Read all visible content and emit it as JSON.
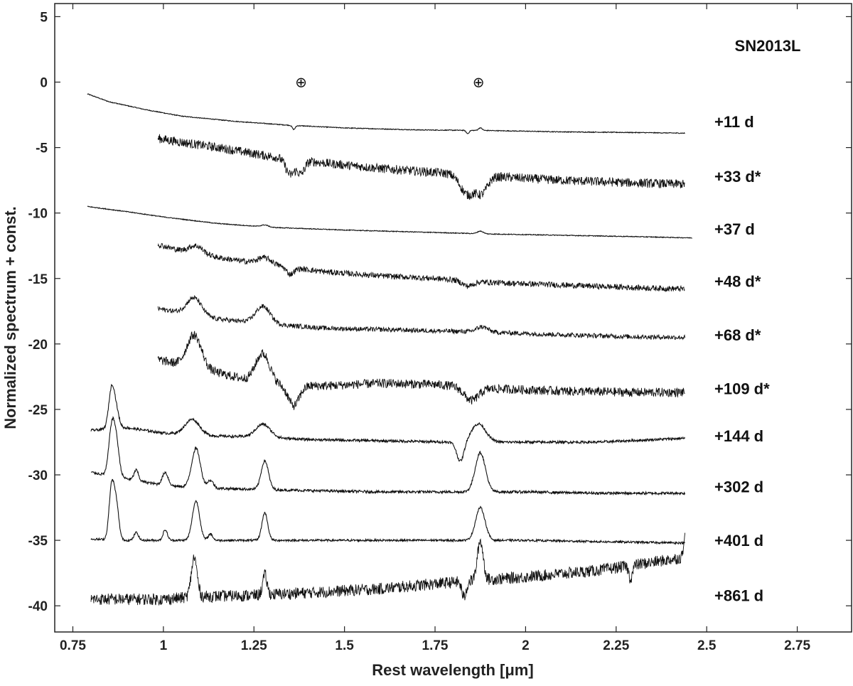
{
  "chart_data": {
    "type": "line",
    "title": "SN2013L",
    "xlabel": "Rest wavelength [μm]",
    "ylabel": "Normalized spectrum + const.",
    "xlim": [
      0.7,
      2.9
    ],
    "ylim": [
      -42,
      6
    ],
    "xticks": [
      0.75,
      1,
      1.25,
      1.5,
      1.75,
      2,
      2.25,
      2.5,
      2.75
    ],
    "xtick_labels": [
      "0.75",
      "1",
      "1.25",
      "1.5",
      "1.75",
      "2",
      "2.25",
      "2.5",
      "2.75"
    ],
    "yticks": [
      5,
      0,
      -5,
      -10,
      -15,
      -20,
      -25,
      -30,
      -35,
      -40
    ],
    "ytick_labels": [
      "5",
      "0",
      "-5",
      "-10",
      "-15",
      "-20",
      "-25",
      "-30",
      "-35",
      "-40"
    ],
    "grid": false,
    "telluric_markers": [
      {
        "x": 1.38,
        "y": 0,
        "symbol": "⊕"
      },
      {
        "x": 1.87,
        "y": 0,
        "symbol": "⊕"
      }
    ],
    "series": [
      {
        "label": "+11 d",
        "label_y": -3.0,
        "noise": 0.03,
        "points": [
          [
            0.79,
            -0.9
          ],
          [
            0.85,
            -1.5
          ],
          [
            0.95,
            -2.1
          ],
          [
            1.05,
            -2.6
          ],
          [
            1.2,
            -3.0
          ],
          [
            1.35,
            -3.3
          ],
          [
            1.5,
            -3.5
          ],
          [
            1.7,
            -3.65
          ],
          [
            1.9,
            -3.7
          ],
          [
            2.1,
            -3.8
          ],
          [
            2.3,
            -3.85
          ],
          [
            2.44,
            -3.9
          ]
        ],
        "features": [
          {
            "x": 1.36,
            "amp": -0.3,
            "w": 0.004
          },
          {
            "x": 1.84,
            "amp": -0.25,
            "w": 0.004
          },
          {
            "x": 1.875,
            "amp": 0.2,
            "w": 0.005
          }
        ]
      },
      {
        "label": "+33 d*",
        "label_y": -7.2,
        "noise": 0.35,
        "points": [
          [
            0.985,
            -4.3
          ],
          [
            1.05,
            -4.6
          ],
          [
            1.15,
            -5.0
          ],
          [
            1.3,
            -5.7
          ],
          [
            1.45,
            -6.2
          ],
          [
            1.6,
            -6.6
          ],
          [
            1.75,
            -6.9
          ],
          [
            1.9,
            -7.2
          ],
          [
            2.1,
            -7.5
          ],
          [
            2.3,
            -7.7
          ],
          [
            2.44,
            -7.8
          ]
        ],
        "features": [
          {
            "x": 1.35,
            "amp": -1.2,
            "w": 0.012
          },
          {
            "x": 1.38,
            "amp": -1.0,
            "w": 0.01
          },
          {
            "x": 1.84,
            "amp": -1.5,
            "w": 0.02
          },
          {
            "x": 1.88,
            "amp": -1.2,
            "w": 0.015
          }
        ]
      },
      {
        "label": "+37 d",
        "label_y": -11.2,
        "noise": 0.03,
        "points": [
          [
            0.79,
            -9.5
          ],
          [
            0.9,
            -9.9
          ],
          [
            1.0,
            -10.3
          ],
          [
            1.15,
            -10.8
          ],
          [
            1.3,
            -11.1
          ],
          [
            1.5,
            -11.3
          ],
          [
            1.7,
            -11.45
          ],
          [
            1.9,
            -11.6
          ],
          [
            2.1,
            -11.7
          ],
          [
            2.3,
            -11.8
          ],
          [
            2.46,
            -11.9
          ]
        ],
        "features": [
          {
            "x": 1.28,
            "amp": 0.15,
            "w": 0.01
          },
          {
            "x": 1.875,
            "amp": 0.2,
            "w": 0.008
          }
        ]
      },
      {
        "label": "+48 d*",
        "label_y": -15.2,
        "noise": 0.22,
        "points": [
          [
            0.985,
            -12.4
          ],
          [
            1.05,
            -12.9
          ],
          [
            1.15,
            -13.4
          ],
          [
            1.3,
            -14.0
          ],
          [
            1.45,
            -14.5
          ],
          [
            1.6,
            -14.8
          ],
          [
            1.75,
            -15.0
          ],
          [
            1.9,
            -15.3
          ],
          [
            2.1,
            -15.5
          ],
          [
            2.3,
            -15.7
          ],
          [
            2.44,
            -15.8
          ]
        ],
        "features": [
          {
            "x": 1.09,
            "amp": 0.6,
            "w": 0.02
          },
          {
            "x": 1.28,
            "amp": 0.5,
            "w": 0.02
          },
          {
            "x": 1.35,
            "amp": -0.5,
            "w": 0.01
          },
          {
            "x": 1.84,
            "amp": -0.4,
            "w": 0.015
          }
        ]
      },
      {
        "label": "+68 d*",
        "label_y": -19.3,
        "noise": 0.18,
        "points": [
          [
            0.985,
            -17.3
          ],
          [
            1.05,
            -17.6
          ],
          [
            1.15,
            -18.1
          ],
          [
            1.3,
            -18.5
          ],
          [
            1.45,
            -18.8
          ],
          [
            1.6,
            -18.9
          ],
          [
            1.75,
            -19.0
          ],
          [
            1.9,
            -19.1
          ],
          [
            2.1,
            -19.3
          ],
          [
            2.3,
            -19.45
          ],
          [
            2.44,
            -19.5
          ]
        ],
        "features": [
          {
            "x": 1.085,
            "amp": 1.3,
            "w": 0.02
          },
          {
            "x": 1.275,
            "amp": 1.3,
            "w": 0.02
          },
          {
            "x": 1.88,
            "amp": 0.4,
            "w": 0.015
          }
        ]
      },
      {
        "label": "+109 d*",
        "label_y": -23.4,
        "noise": 0.35,
        "points": [
          [
            0.985,
            -21.2
          ],
          [
            1.05,
            -21.6
          ],
          [
            1.15,
            -22.2
          ],
          [
            1.3,
            -23.2
          ],
          [
            1.45,
            -23.2
          ],
          [
            1.6,
            -23.0
          ],
          [
            1.75,
            -23.1
          ],
          [
            1.9,
            -23.4
          ],
          [
            2.1,
            -23.6
          ],
          [
            2.3,
            -23.7
          ],
          [
            2.44,
            -23.7
          ]
        ],
        "features": [
          {
            "x": 1.085,
            "amp": 2.5,
            "w": 0.02
          },
          {
            "x": 1.275,
            "amp": 2.3,
            "w": 0.02
          },
          {
            "x": 1.36,
            "amp": -1.5,
            "w": 0.015
          },
          {
            "x": 1.85,
            "amp": -1.0,
            "w": 0.02
          }
        ]
      },
      {
        "label": "+144 d",
        "label_y": -27.0,
        "noise": 0.1,
        "points": [
          [
            0.8,
            -26.6
          ],
          [
            0.9,
            -26.4
          ],
          [
            1.0,
            -26.8
          ],
          [
            1.1,
            -27.0
          ],
          [
            1.25,
            -27.1
          ],
          [
            1.4,
            -27.3
          ],
          [
            1.6,
            -27.4
          ],
          [
            1.8,
            -27.5
          ],
          [
            2.0,
            -27.5
          ],
          [
            2.2,
            -27.5
          ],
          [
            2.44,
            -27.2
          ]
        ],
        "features": [
          {
            "x": 0.857,
            "amp": 3.0,
            "w": 0.008
          },
          {
            "x": 0.87,
            "amp": 1.2,
            "w": 0.008
          },
          {
            "x": 1.08,
            "amp": 1.2,
            "w": 0.02
          },
          {
            "x": 1.275,
            "amp": 1.0,
            "w": 0.02
          },
          {
            "x": 1.82,
            "amp": -1.5,
            "w": 0.01
          },
          {
            "x": 1.87,
            "amp": 1.4,
            "w": 0.02
          }
        ]
      },
      {
        "label": "+302 d",
        "label_y": -30.9,
        "noise": 0.1,
        "points": [
          [
            0.8,
            -29.8
          ],
          [
            0.9,
            -30.3
          ],
          [
            1.0,
            -30.8
          ],
          [
            1.1,
            -31.0
          ],
          [
            1.25,
            -31.1
          ],
          [
            1.4,
            -31.2
          ],
          [
            1.6,
            -31.3
          ],
          [
            1.8,
            -31.3
          ],
          [
            2.0,
            -31.3
          ],
          [
            2.2,
            -31.4
          ],
          [
            2.44,
            -31.4
          ]
        ],
        "features": [
          {
            "x": 0.857,
            "amp": 3.5,
            "w": 0.008
          },
          {
            "x": 0.87,
            "amp": 2.5,
            "w": 0.008
          },
          {
            "x": 0.925,
            "amp": 0.8,
            "w": 0.006
          },
          {
            "x": 1.005,
            "amp": 1.0,
            "w": 0.008
          },
          {
            "x": 1.09,
            "amp": 3.0,
            "w": 0.012
          },
          {
            "x": 1.13,
            "amp": 0.6,
            "w": 0.008
          },
          {
            "x": 1.28,
            "amp": 2.2,
            "w": 0.01
          },
          {
            "x": 1.875,
            "amp": 3.0,
            "w": 0.014
          }
        ]
      },
      {
        "label": "+401 d",
        "label_y": -35.0,
        "noise": 0.08,
        "points": [
          [
            0.8,
            -34.9
          ],
          [
            0.9,
            -35.0
          ],
          [
            1.0,
            -35.0
          ],
          [
            1.1,
            -35.0
          ],
          [
            1.25,
            -35.0
          ],
          [
            1.4,
            -35.0
          ],
          [
            1.6,
            -35.0
          ],
          [
            1.8,
            -35.0
          ],
          [
            2.0,
            -35.0
          ],
          [
            2.2,
            -35.1
          ],
          [
            2.44,
            -35.2
          ]
        ],
        "features": [
          {
            "x": 0.857,
            "amp": 4.0,
            "w": 0.007
          },
          {
            "x": 0.87,
            "amp": 2.6,
            "w": 0.007
          },
          {
            "x": 0.925,
            "amp": 0.6,
            "w": 0.006
          },
          {
            "x": 1.005,
            "amp": 0.8,
            "w": 0.006
          },
          {
            "x": 1.09,
            "amp": 3.0,
            "w": 0.01
          },
          {
            "x": 1.13,
            "amp": 0.5,
            "w": 0.006
          },
          {
            "x": 1.28,
            "amp": 2.1,
            "w": 0.008
          },
          {
            "x": 1.875,
            "amp": 2.5,
            "w": 0.013
          }
        ]
      },
      {
        "label": "+861 d",
        "label_y": -39.2,
        "noise": 0.45,
        "points": [
          [
            0.8,
            -39.5
          ],
          [
            0.9,
            -39.5
          ],
          [
            1.0,
            -39.5
          ],
          [
            1.1,
            -39.3
          ],
          [
            1.25,
            -39.2
          ],
          [
            1.4,
            -39.0
          ],
          [
            1.6,
            -38.7
          ],
          [
            1.8,
            -38.2
          ],
          [
            2.0,
            -37.8
          ],
          [
            2.2,
            -37.3
          ],
          [
            2.44,
            -36.3
          ]
        ],
        "features": [
          {
            "x": 1.085,
            "amp": 3.0,
            "w": 0.008
          },
          {
            "x": 1.28,
            "amp": 1.5,
            "w": 0.006
          },
          {
            "x": 1.83,
            "amp": -1.2,
            "w": 0.006
          },
          {
            "x": 1.875,
            "amp": 3.0,
            "w": 0.008
          },
          {
            "x": 2.29,
            "amp": -1.0,
            "w": 0.005
          },
          {
            "x": 2.44,
            "amp": 1.8,
            "w": 0.004
          }
        ]
      }
    ]
  }
}
